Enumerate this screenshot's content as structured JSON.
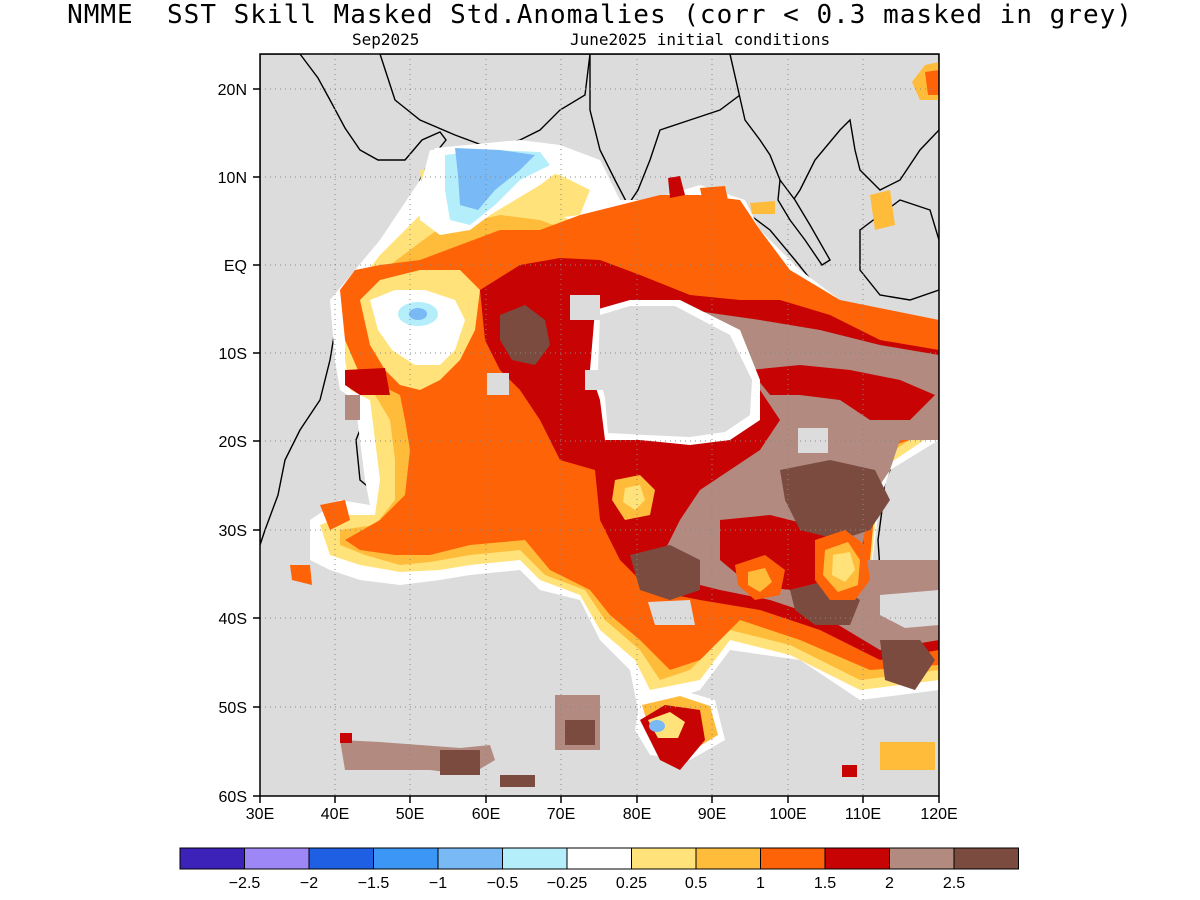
{
  "title": "NMME  SST Skill Masked Std.Anomalies (corr < 0.3 masked in grey)",
  "subtitle_left": "Sep2025",
  "subtitle_right": "June2025 initial conditions",
  "map": {
    "lon_range": [
      30,
      120
    ],
    "lat_range": [
      -60,
      24
    ],
    "lat_ticks": [
      "20N",
      "10N",
      "EQ",
      "10S",
      "20S",
      "30S",
      "40S",
      "50S",
      "60S"
    ],
    "lon_ticks": [
      "30E",
      "40E",
      "50E",
      "60E",
      "70E",
      "80E",
      "90E",
      "100E",
      "110E",
      "120E"
    ]
  },
  "legend": {
    "colors": [
      "#3c22b8",
      "#9d86f6",
      "#1f5fe4",
      "#3c96f5",
      "#78b9f6",
      "#b3eefa",
      "#ffffff",
      "#ffe37a",
      "#ffbb3a",
      "#ff6308",
      "#c70303",
      "#b28a80",
      "#7b4b40"
    ],
    "labels": [
      "-2.5",
      "-2",
      "-1.5",
      "-1",
      "-0.5",
      "-0.25",
      "0.25",
      "0.5",
      "1",
      "1.5",
      "2",
      "2.5"
    ]
  }
}
